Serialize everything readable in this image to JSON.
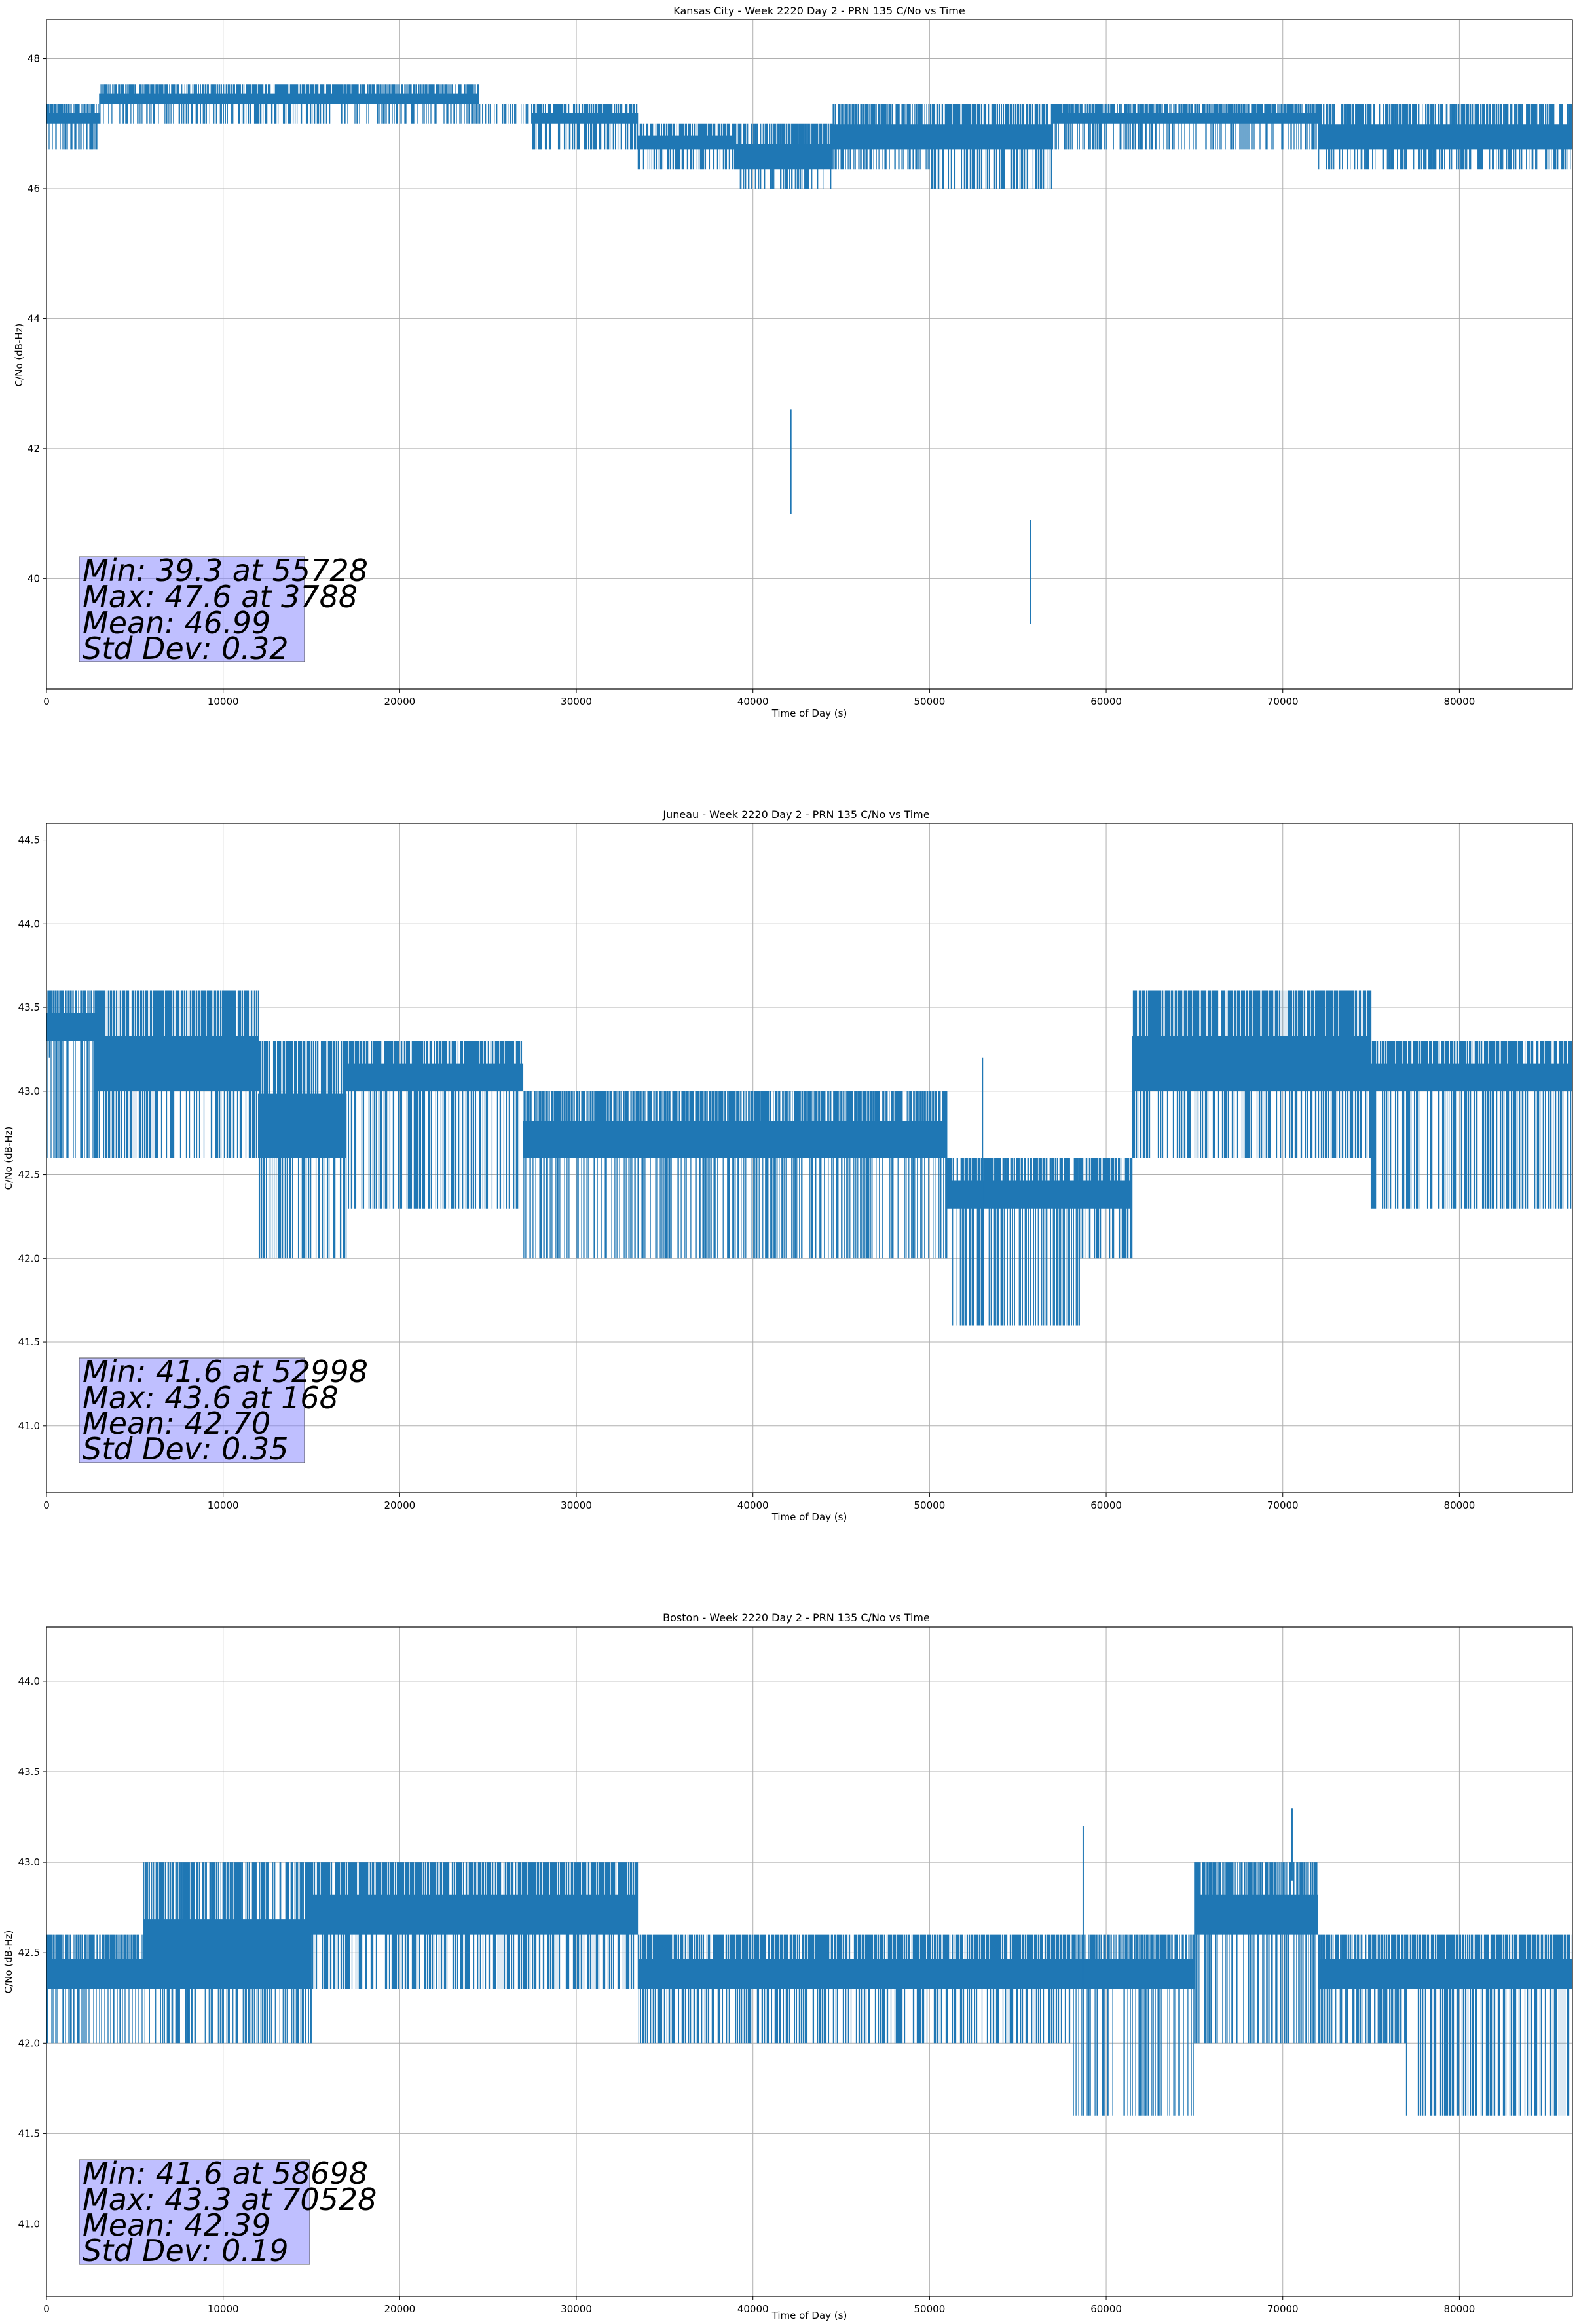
{
  "colors": {
    "series": "#1f77b4",
    "grid": "#b0b0b0",
    "stats_box_fill": "#8080ff",
    "stats_box_fill_opacity": 0.5
  },
  "chart_data": [
    {
      "type": "line",
      "title": "Kansas City - Week 2220 Day 2 - PRN 135 C/No vs Time",
      "xlabel": "Time of Day (s)",
      "ylabel": "C/No (dB-Hz)",
      "xlim": [
        0,
        86400
      ],
      "ylim": [
        38.3,
        48.6
      ],
      "xticks": [
        0,
        10000,
        20000,
        30000,
        40000,
        50000,
        60000,
        70000,
        80000
      ],
      "yticks": [
        40,
        42,
        44,
        46,
        48
      ],
      "ytick_decimals": 0,
      "grid": true,
      "noise_seed": 11,
      "envelope": [
        {
          "x": [
            0,
            3000
          ],
          "lo": 46.6,
          "hi": 47.3,
          "base": 47.0
        },
        {
          "x": [
            3000,
            7500
          ],
          "lo": 47.0,
          "hi": 47.6,
          "base": 47.3
        },
        {
          "x": [
            7500,
            11000
          ],
          "lo": 47.0,
          "hi": 47.6,
          "base": 47.3
        },
        {
          "x": [
            11000,
            16500
          ],
          "lo": 47.0,
          "hi": 47.6,
          "base": 47.3
        },
        {
          "x": [
            16500,
            24500
          ],
          "lo": 47.0,
          "hi": 47.6,
          "base": 47.3
        },
        {
          "x": [
            24500,
            27500
          ],
          "lo": 47.0,
          "hi": 47.3,
          "base": 47.3
        },
        {
          "x": [
            27500,
            33500
          ],
          "lo": 46.6,
          "hi": 47.3,
          "base": 47.0
        },
        {
          "x": [
            33500,
            39000
          ],
          "lo": 46.3,
          "hi": 47.0,
          "base": 46.6
        },
        {
          "x": [
            39000,
            44500
          ],
          "lo": 46.0,
          "hi": 47.0,
          "base": 46.3
        },
        {
          "x": [
            44500,
            50000
          ],
          "lo": 46.3,
          "hi": 47.3,
          "base": 46.6
        },
        {
          "x": [
            50000,
            57000
          ],
          "lo": 46.0,
          "hi": 47.3,
          "base": 46.6
        },
        {
          "x": [
            57000,
            63000
          ],
          "lo": 46.6,
          "hi": 47.3,
          "base": 47.0
        },
        {
          "x": [
            63000,
            72000
          ],
          "lo": 46.6,
          "hi": 47.3,
          "base": 47.0
        },
        {
          "x": [
            72000,
            86400
          ],
          "lo": 46.3,
          "hi": 47.3,
          "base": 46.6
        }
      ],
      "spikes": [
        {
          "x": 42150,
          "y": 41.0
        },
        {
          "x": 55728,
          "y": 39.3
        }
      ],
      "stats": {
        "min": "Min: 39.3 at 55728",
        "max": "Max: 47.6 at 3788",
        "mean": "Mean: 46.99",
        "std": "Std Dev: 0.32"
      }
    },
    {
      "type": "line",
      "title": "Juneau - Week 2220 Day 2 - PRN 135 C/No vs Time",
      "xlabel": "Time of Day (s)",
      "ylabel": "C/No (dB-Hz)",
      "xlim": [
        0,
        86400
      ],
      "ylim": [
        40.6,
        44.6
      ],
      "xticks": [
        0,
        10000,
        20000,
        30000,
        40000,
        50000,
        60000,
        70000,
        80000
      ],
      "yticks": [
        41.0,
        41.5,
        42.0,
        42.5,
        43.0,
        43.5,
        44.0,
        44.5
      ],
      "ytick_decimals": 1,
      "grid": true,
      "noise_seed": 23,
      "envelope": [
        {
          "x": [
            0,
            2800
          ],
          "lo": 42.6,
          "hi": 43.6,
          "base": 43.3
        },
        {
          "x": [
            2800,
            12000
          ],
          "lo": 42.6,
          "hi": 43.6,
          "base": 43.0
        },
        {
          "x": [
            12000,
            17000
          ],
          "lo": 42.0,
          "hi": 43.3,
          "base": 42.6
        },
        {
          "x": [
            17000,
            27000
          ],
          "lo": 42.3,
          "hi": 43.3,
          "base": 43.0
        },
        {
          "x": [
            27000,
            38000
          ],
          "lo": 42.0,
          "hi": 43.0,
          "base": 42.6
        },
        {
          "x": [
            38000,
            51000
          ],
          "lo": 42.0,
          "hi": 43.0,
          "base": 42.6
        },
        {
          "x": [
            51000,
            58500
          ],
          "lo": 41.6,
          "hi": 42.6,
          "base": 42.3
        },
        {
          "x": [
            58500,
            61500
          ],
          "lo": 42.0,
          "hi": 42.6,
          "base": 42.3
        },
        {
          "x": [
            61500,
            75000
          ],
          "lo": 42.6,
          "hi": 43.6,
          "base": 43.0
        },
        {
          "x": [
            75000,
            86400
          ],
          "lo": 42.3,
          "hi": 43.3,
          "base": 43.0
        }
      ],
      "spikes": [
        {
          "x": 168,
          "y": 43.6
        },
        {
          "x": 52998,
          "y": 41.6
        }
      ],
      "stats": {
        "min": "Min: 41.6 at 52998",
        "max": "Max: 43.6 at 168",
        "mean": "Mean: 42.70",
        "std": "Std Dev: 0.35"
      }
    },
    {
      "type": "line",
      "title": "Boston - Week 2220 Day 2 - PRN 135 C/No vs Time",
      "xlabel": "Time of Day (s)",
      "ylabel": "C/No (dB-Hz)",
      "xlim": [
        0,
        86400
      ],
      "ylim": [
        40.6,
        44.3
      ],
      "xticks": [
        0,
        10000,
        20000,
        30000,
        40000,
        50000,
        60000,
        70000,
        80000
      ],
      "yticks": [
        41.0,
        41.5,
        42.0,
        42.5,
        43.0,
        43.5,
        44.0
      ],
      "ytick_decimals": 1,
      "grid": true,
      "noise_seed": 37,
      "envelope": [
        {
          "x": [
            0,
            5500
          ],
          "lo": 42.0,
          "hi": 42.6,
          "base": 42.3
        },
        {
          "x": [
            5500,
            15000
          ],
          "lo": 42.0,
          "hi": 43.0,
          "base": 42.3
        },
        {
          "x": [
            15000,
            33500
          ],
          "lo": 42.3,
          "hi": 43.0,
          "base": 42.6
        },
        {
          "x": [
            33500,
            45000
          ],
          "lo": 42.0,
          "hi": 42.6,
          "base": 42.3
        },
        {
          "x": [
            45000,
            58000
          ],
          "lo": 42.0,
          "hi": 42.6,
          "base": 42.3
        },
        {
          "x": [
            58000,
            65000
          ],
          "lo": 41.6,
          "hi": 42.6,
          "base": 42.3
        },
        {
          "x": [
            65000,
            72000
          ],
          "lo": 42.0,
          "hi": 43.0,
          "base": 42.6
        },
        {
          "x": [
            72000,
            77000
          ],
          "lo": 42.0,
          "hi": 42.6,
          "base": 42.3
        },
        {
          "x": [
            77000,
            86400
          ],
          "lo": 41.6,
          "hi": 42.6,
          "base": 42.3
        }
      ],
      "spikes": [
        {
          "x": 58698,
          "y": 41.6
        },
        {
          "x": 70528,
          "y": 43.3
        }
      ],
      "stats": {
        "min": "Min: 41.6 at 58698",
        "max": "Max: 43.3 at 70528",
        "mean": "Mean: 42.39",
        "std": "Std Dev: 0.19"
      }
    }
  ]
}
